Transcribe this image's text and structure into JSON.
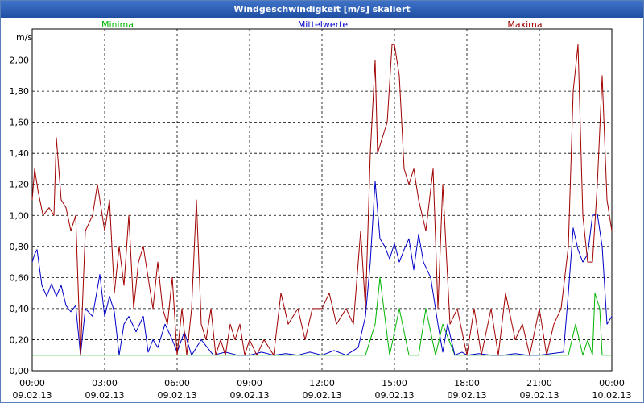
{
  "window": {
    "title": "Windgeschwindigkeit [m/s] skaliert"
  },
  "chart_data": {
    "type": "line",
    "title": "Windgeschwindigkeit [m/s] skaliert",
    "ylabel": "m/s",
    "xlabel": "",
    "ylim": [
      0,
      2.2
    ],
    "xlim": [
      0,
      24
    ],
    "grid": true,
    "legend_position": "top",
    "y_ticks": [
      "0,00",
      "0,20",
      "0,40",
      "0,60",
      "0,80",
      "1,00",
      "1,20",
      "1,40",
      "1,60",
      "1,80",
      "2,00"
    ],
    "x_ticks": [
      {
        "time": "00:00",
        "date": "09.02.13"
      },
      {
        "time": "03:00",
        "date": "09.02.13"
      },
      {
        "time": "06:00",
        "date": "09.02.13"
      },
      {
        "time": "09:00",
        "date": "09.02.13"
      },
      {
        "time": "12:00",
        "date": "09.02.13"
      },
      {
        "time": "15:00",
        "date": "09.02.13"
      },
      {
        "time": "18:00",
        "date": "09.02.13"
      },
      {
        "time": "21:00",
        "date": "09.02.13"
      },
      {
        "time": "00:00",
        "date": "10.02.13"
      }
    ],
    "series": [
      {
        "name": "Minima",
        "color": "#00b400",
        "x": [
          0,
          13.8,
          14.2,
          14.4,
          14.8,
          15.2,
          15.6,
          16.0,
          16.3,
          16.7,
          17.0,
          17.5,
          22.2,
          22.5,
          22.8,
          23.0,
          23.2,
          23.3,
          23.5,
          23.6,
          24.0
        ],
        "y": [
          0.1,
          0.1,
          0.3,
          0.6,
          0.1,
          0.4,
          0.1,
          0.1,
          0.4,
          0.1,
          0.3,
          0.1,
          0.1,
          0.3,
          0.1,
          0.2,
          0.1,
          0.5,
          0.4,
          0.1,
          0.1
        ]
      },
      {
        "name": "Mittelwerte",
        "color": "#0000c8",
        "x": [
          0,
          0.1,
          0.2,
          0.4,
          0.6,
          0.8,
          1.0,
          1.2,
          1.4,
          1.6,
          1.8,
          2.0,
          2.2,
          2.5,
          2.8,
          3.0,
          3.2,
          3.4,
          3.6,
          3.8,
          4.0,
          4.3,
          4.6,
          4.8,
          5.0,
          5.2,
          5.5,
          5.8,
          6.0,
          6.3,
          6.6,
          7.0,
          7.5,
          8.0,
          8.5,
          9.0,
          9.5,
          10.0,
          10.5,
          11.0,
          11.5,
          12.0,
          12.5,
          13.0,
          13.5,
          13.8,
          14.0,
          14.2,
          14.4,
          14.6,
          14.8,
          15.0,
          15.2,
          15.4,
          15.6,
          15.8,
          16.0,
          16.2,
          16.5,
          16.8,
          17.0,
          17.2,
          17.5,
          17.8,
          18.0,
          18.5,
          19.0,
          19.5,
          20.0,
          20.5,
          21.0,
          21.5,
          22.0,
          22.2,
          22.4,
          22.6,
          22.8,
          23.0,
          23.2,
          23.4,
          23.6,
          23.8,
          24.0
        ],
        "y": [
          0.7,
          0.75,
          0.78,
          0.55,
          0.48,
          0.56,
          0.48,
          0.55,
          0.42,
          0.38,
          0.42,
          0.1,
          0.4,
          0.35,
          0.62,
          0.35,
          0.48,
          0.38,
          0.1,
          0.3,
          0.35,
          0.25,
          0.35,
          0.12,
          0.2,
          0.15,
          0.3,
          0.2,
          0.12,
          0.25,
          0.1,
          0.2,
          0.1,
          0.12,
          0.1,
          0.1,
          0.12,
          0.1,
          0.11,
          0.1,
          0.12,
          0.1,
          0.13,
          0.1,
          0.15,
          0.35,
          0.7,
          1.22,
          0.85,
          0.8,
          0.72,
          0.82,
          0.7,
          0.78,
          0.85,
          0.65,
          0.88,
          0.7,
          0.6,
          0.3,
          0.12,
          0.3,
          0.1,
          0.12,
          0.1,
          0.11,
          0.1,
          0.1,
          0.11,
          0.1,
          0.1,
          0.11,
          0.12,
          0.5,
          0.92,
          0.78,
          0.7,
          0.75,
          1.0,
          1.01,
          0.8,
          0.3,
          0.35
        ]
      },
      {
        "name": "Maxima",
        "color": "#a00000",
        "x": [
          0,
          0.1,
          0.25,
          0.45,
          0.7,
          0.9,
          1.0,
          1.2,
          1.4,
          1.6,
          1.8,
          2.0,
          2.2,
          2.5,
          2.7,
          3.0,
          3.2,
          3.4,
          3.6,
          3.8,
          4.0,
          4.2,
          4.4,
          4.6,
          4.8,
          5.0,
          5.2,
          5.4,
          5.6,
          5.8,
          6.0,
          6.2,
          6.4,
          6.6,
          6.8,
          7.0,
          7.2,
          7.4,
          7.6,
          7.8,
          8.0,
          8.2,
          8.4,
          8.6,
          8.8,
          9.0,
          9.3,
          9.6,
          10.0,
          10.3,
          10.6,
          11.0,
          11.3,
          11.6,
          12.0,
          12.3,
          12.6,
          13.0,
          13.3,
          13.6,
          13.8,
          14.0,
          14.2,
          14.3,
          14.5,
          14.7,
          14.9,
          15.0,
          15.2,
          15.4,
          15.6,
          15.8,
          16.0,
          16.3,
          16.6,
          16.8,
          17.0,
          17.3,
          17.6,
          18.0,
          18.3,
          18.6,
          19.0,
          19.3,
          19.6,
          20.0,
          20.3,
          20.6,
          21.0,
          21.3,
          21.6,
          21.9,
          22.2,
          22.4,
          22.6,
          22.8,
          23.0,
          23.2,
          23.4,
          23.6,
          23.8,
          24.0
        ],
        "y": [
          1.1,
          1.3,
          1.15,
          1.0,
          1.05,
          1.0,
          1.5,
          1.1,
          1.05,
          0.9,
          1.0,
          0.1,
          0.9,
          1.0,
          1.2,
          0.9,
          1.1,
          0.5,
          0.8,
          0.55,
          1.0,
          0.4,
          0.7,
          0.8,
          0.6,
          0.4,
          0.7,
          0.4,
          0.3,
          0.6,
          0.1,
          0.4,
          0.1,
          0.4,
          1.1,
          0.3,
          0.2,
          0.4,
          0.1,
          0.2,
          0.1,
          0.3,
          0.2,
          0.3,
          0.1,
          0.2,
          0.1,
          0.2,
          0.1,
          0.5,
          0.3,
          0.4,
          0.2,
          0.4,
          0.4,
          0.5,
          0.3,
          0.4,
          0.3,
          0.9,
          0.4,
          1.4,
          2.0,
          1.4,
          1.5,
          1.6,
          2.1,
          2.1,
          1.9,
          1.3,
          1.2,
          1.3,
          1.1,
          0.9,
          1.3,
          0.4,
          1.2,
          0.3,
          0.4,
          0.1,
          0.4,
          0.1,
          0.4,
          0.1,
          0.5,
          0.2,
          0.3,
          0.1,
          0.4,
          0.1,
          0.3,
          0.4,
          0.8,
          1.8,
          2.1,
          1.0,
          0.7,
          0.7,
          1.2,
          1.9,
          1.1,
          0.9
        ]
      }
    ]
  }
}
